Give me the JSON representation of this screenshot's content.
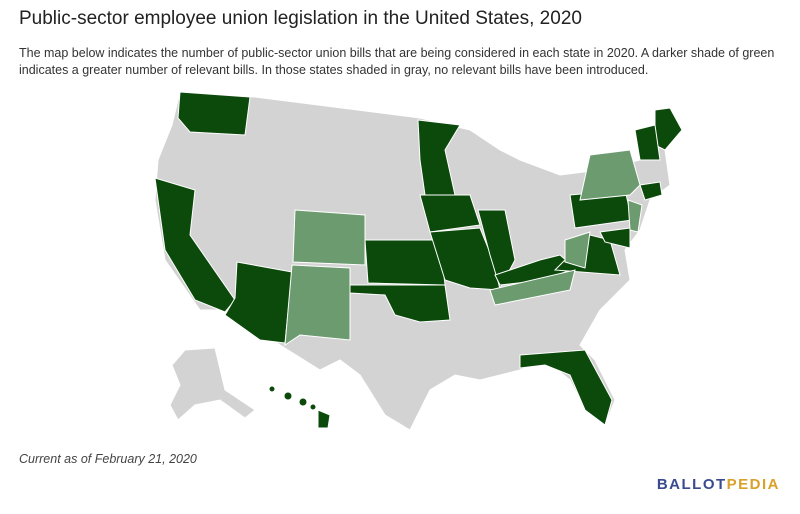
{
  "header": {
    "title": "Public-sector employee union legislation in the United States, 2020",
    "description": "The map below indicates the number of public-sector union bills that are being considered in each state in 2020. A darker shade of green indicates a greater number of relevant bills. In those states shaded in gray, no relevant bills have been introduced."
  },
  "footer": {
    "note": "Current as of February 21, 2020",
    "logo": {
      "first": "BALLOT",
      "second": "PEDIA"
    }
  }
}
